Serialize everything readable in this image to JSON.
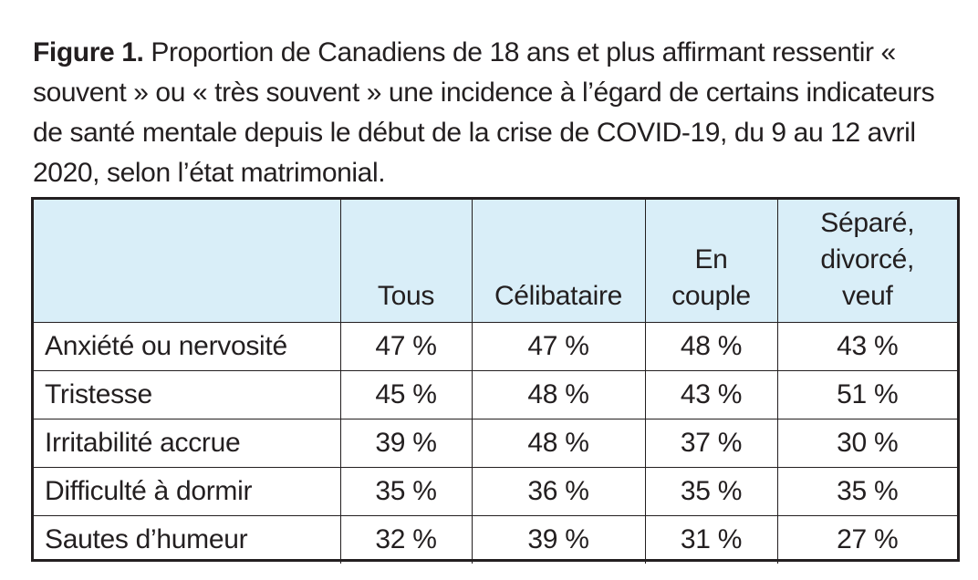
{
  "figure": {
    "label": "Figure 1.",
    "title": "Proportion de Canadiens de 18 ans et plus affirmant ressentir « souvent » ou « très souvent » une incidence à l’égard de certains indicateurs de santé mentale depuis le début de la crise de COVID-19, du 9 au 12 avril 2020, selon l’état matrimonial."
  },
  "table": {
    "corner": "",
    "columns": [
      "Tous",
      "Célibataire",
      "En\ncouple",
      "Séparé,\ndivorcé,\nveuf"
    ],
    "rows": [
      {
        "label": "Anxiété ou nervosité",
        "values": [
          "47 %",
          "47 %",
          "48 %",
          "43 %"
        ]
      },
      {
        "label": "Tristesse",
        "values": [
          "45 %",
          "48 %",
          "43 %",
          "51 %"
        ]
      },
      {
        "label": "Irritabilité accrue",
        "values": [
          "39 %",
          "48 %",
          "37 %",
          "30 %"
        ]
      },
      {
        "label": "Difficulté à dormir",
        "values": [
          "35 %",
          "36 %",
          "35 %",
          "35 %"
        ]
      },
      {
        "label": "Sautes d’humeur",
        "values": [
          "32 %",
          "39 %",
          "31 %",
          "27 %"
        ]
      }
    ]
  },
  "colors": {
    "header_background": "#d9eef8",
    "border": "#231f20",
    "text": "#231f20"
  }
}
